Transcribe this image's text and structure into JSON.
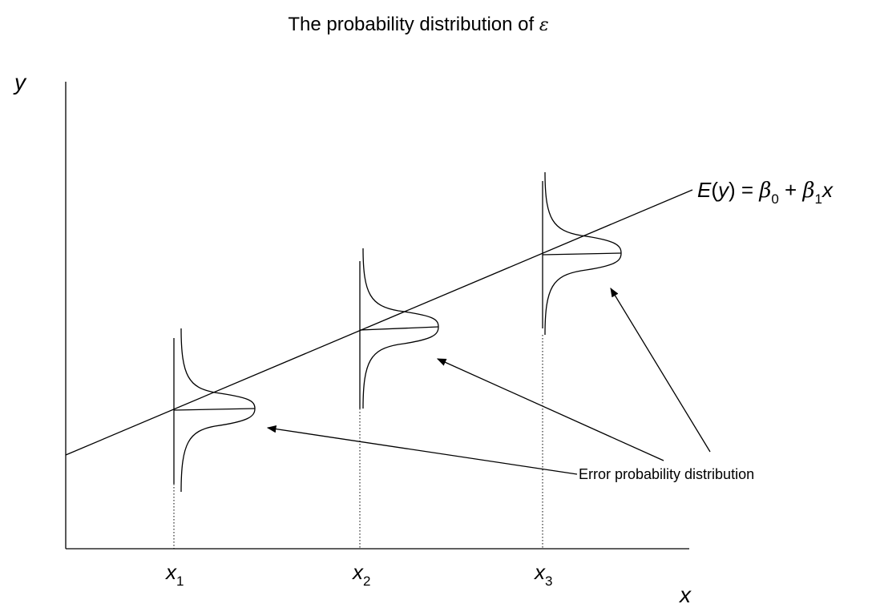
{
  "title": {
    "text": "The probability distribution of ",
    "symbol": "ε"
  },
  "axes": {
    "y_label": "y",
    "x_label": "x"
  },
  "ticks": [
    {
      "var": "x",
      "sub": "1"
    },
    {
      "var": "x",
      "sub": "2"
    },
    {
      "var": "x",
      "sub": "3"
    }
  ],
  "regression_line": {
    "label_e": "E",
    "label_paren_open": "(",
    "label_y": "y",
    "label_paren_close": ")",
    "label_eq": " = ",
    "label_beta0": "β",
    "label_sub0": "0",
    "label_plus": " + ",
    "label_beta1": "β",
    "label_sub1": "1",
    "label_x": "x"
  },
  "annotation": {
    "text": "Error probability distribution"
  },
  "colors": {
    "stroke": "#000000",
    "background": "#ffffff"
  }
}
